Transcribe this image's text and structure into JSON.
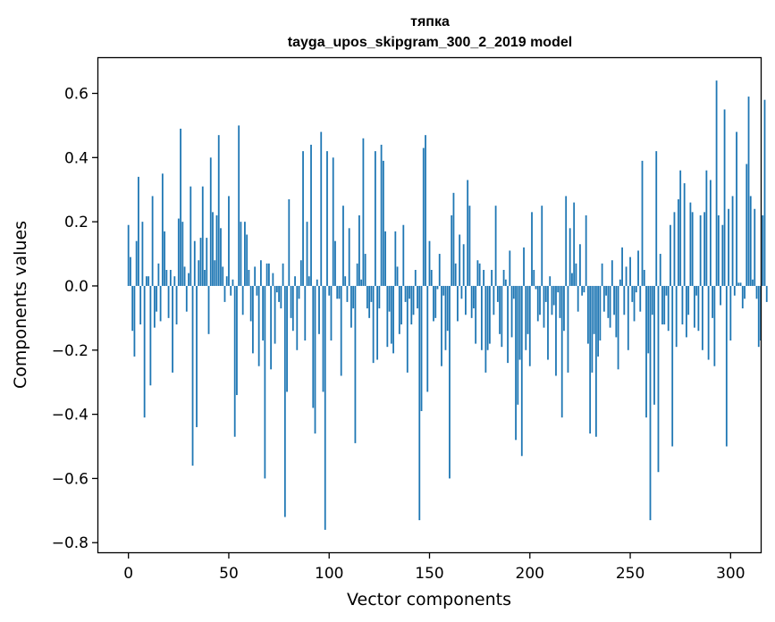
{
  "chart_data": {
    "type": "bar",
    "title_line1": "тяпка",
    "title_line2": "tayga_upos_skipgram_300_2_2019 model",
    "xlabel": "Vector components",
    "ylabel": "Components values",
    "xlim": [
      -15,
      315
    ],
    "ylim": [
      -0.83,
      0.71
    ],
    "xticks": [
      0,
      50,
      100,
      150,
      200,
      250,
      300
    ],
    "xtick_labels": [
      "0",
      "50",
      "100",
      "150",
      "200",
      "250",
      "300"
    ],
    "yticks": [
      -0.8,
      -0.6,
      -0.4,
      -0.2,
      0.0,
      0.2,
      0.4,
      0.6
    ],
    "ytick_labels": [
      "−0.8",
      "−0.6",
      "−0.4",
      "−0.2",
      "0.0",
      "0.2",
      "0.4",
      "0.6"
    ],
    "bar_color": "#1f77b4",
    "values": [
      0.19,
      0.09,
      -0.14,
      -0.22,
      0.14,
      0.34,
      -0.12,
      0.2,
      -0.41,
      0.03,
      0.03,
      -0.31,
      0.28,
      -0.13,
      -0.08,
      0.07,
      -0.11,
      0.35,
      0.17,
      0.05,
      -0.1,
      0.05,
      -0.27,
      0.03,
      -0.12,
      0.21,
      0.49,
      0.2,
      0.06,
      -0.08,
      0.04,
      0.31,
      -0.56,
      0.14,
      -0.44,
      0.08,
      0.15,
      0.31,
      0.05,
      0.15,
      -0.15,
      0.4,
      0.23,
      0.08,
      0.22,
      0.47,
      0.18,
      0.06,
      -0.05,
      0.03,
      0.28,
      -0.03,
      0.02,
      -0.47,
      -0.34,
      0.5,
      0.2,
      -0.09,
      0.2,
      0.16,
      0.05,
      -0.11,
      -0.21,
      0.06,
      -0.03,
      -0.25,
      0.08,
      -0.17,
      -0.6,
      0.07,
      0.07,
      -0.26,
      0.04,
      -0.18,
      -0.02,
      -0.05,
      -0.07,
      0.07,
      -0.72,
      -0.33,
      0.27,
      -0.1,
      -0.14,
      0.03,
      -0.2,
      -0.04,
      0.08,
      0.42,
      -0.17,
      0.2,
      0.03,
      0.44,
      -0.38,
      -0.46,
      0.02,
      -0.15,
      0.48,
      -0.33,
      -0.76,
      0.42,
      -0.03,
      -0.17,
      0.4,
      0.14,
      -0.04,
      -0.04,
      -0.28,
      0.25,
      0.03,
      -0.05,
      0.18,
      -0.13,
      -0.07,
      -0.49,
      0.07,
      0.22,
      0.02,
      0.46,
      0.1,
      -0.07,
      -0.1,
      -0.05,
      -0.24,
      0.42,
      -0.23,
      -0.07,
      0.44,
      0.39,
      0.17,
      -0.19,
      -0.08,
      -0.18,
      -0.21,
      0.17,
      0.06,
      -0.15,
      -0.12,
      0.19,
      -0.05,
      -0.27,
      -0.04,
      -0.12,
      -0.09,
      0.05,
      -0.07,
      -0.73,
      -0.39,
      0.43,
      0.47,
      -0.33,
      0.14,
      0.05,
      -0.11,
      -0.1,
      -0.01,
      0.1,
      -0.25,
      -0.03,
      -0.2,
      -0.14,
      -0.6,
      0.22,
      0.29,
      0.07,
      -0.11,
      0.16,
      -0.04,
      0.13,
      -0.09,
      0.33,
      0.25,
      -0.1,
      -0.07,
      -0.18,
      0.08,
      0.07,
      -0.2,
      0.05,
      -0.27,
      -0.2,
      -0.18,
      0.05,
      -0.09,
      0.25,
      -0.05,
      -0.15,
      -0.19,
      0.05,
      0.02,
      -0.24,
      0.11,
      -0.16,
      -0.04,
      -0.48,
      -0.37,
      -0.23,
      -0.53,
      0.12,
      -0.2,
      -0.15,
      -0.25,
      0.23,
      0.05,
      -0.01,
      -0.11,
      -0.09,
      0.25,
      -0.13,
      -0.05,
      -0.23,
      0.03,
      -0.09,
      -0.06,
      -0.28,
      -0.02,
      -0.1,
      -0.41,
      -0.14,
      0.28,
      -0.27,
      0.18,
      0.04,
      0.26,
      0.07,
      -0.08,
      0.13,
      -0.03,
      -0.02,
      0.22,
      -0.18,
      -0.46,
      -0.27,
      -0.15,
      -0.47,
      -0.22,
      -0.17,
      0.07,
      -0.08,
      -0.03,
      -0.1,
      -0.13,
      0.08,
      -0.09,
      -0.16,
      -0.26,
      0.02,
      0.12,
      -0.09,
      0.06,
      -0.2,
      0.09,
      -0.05,
      -0.11,
      -0.02,
      0.11,
      -0.08,
      0.39,
      0.05,
      -0.41,
      -0.21,
      -0.73,
      -0.09,
      -0.37,
      0.42,
      -0.58,
      0.1,
      -0.12,
      -0.12,
      -0.03,
      -0.14,
      0.19,
      -0.5,
      0.23,
      -0.19,
      0.27,
      0.36,
      -0.12,
      0.32,
      -0.16,
      -0.09,
      0.26,
      0.23,
      -0.13,
      -0.03,
      -0.14,
      0.22,
      -0.2,
      0.23,
      0.36,
      -0.23,
      0.33,
      -0.1,
      -0.25,
      0.64,
      0.22,
      -0.06,
      0.19,
      0.55,
      -0.5,
      0.24,
      -0.17,
      0.28,
      -0.03,
      0.48,
      0.01,
      0.01,
      -0.07,
      -0.04,
      0.38,
      0.59,
      0.28,
      0.02,
      0.24,
      -0.04,
      -0.19,
      -0.17,
      0.22,
      0.58,
      -0.05
    ]
  }
}
